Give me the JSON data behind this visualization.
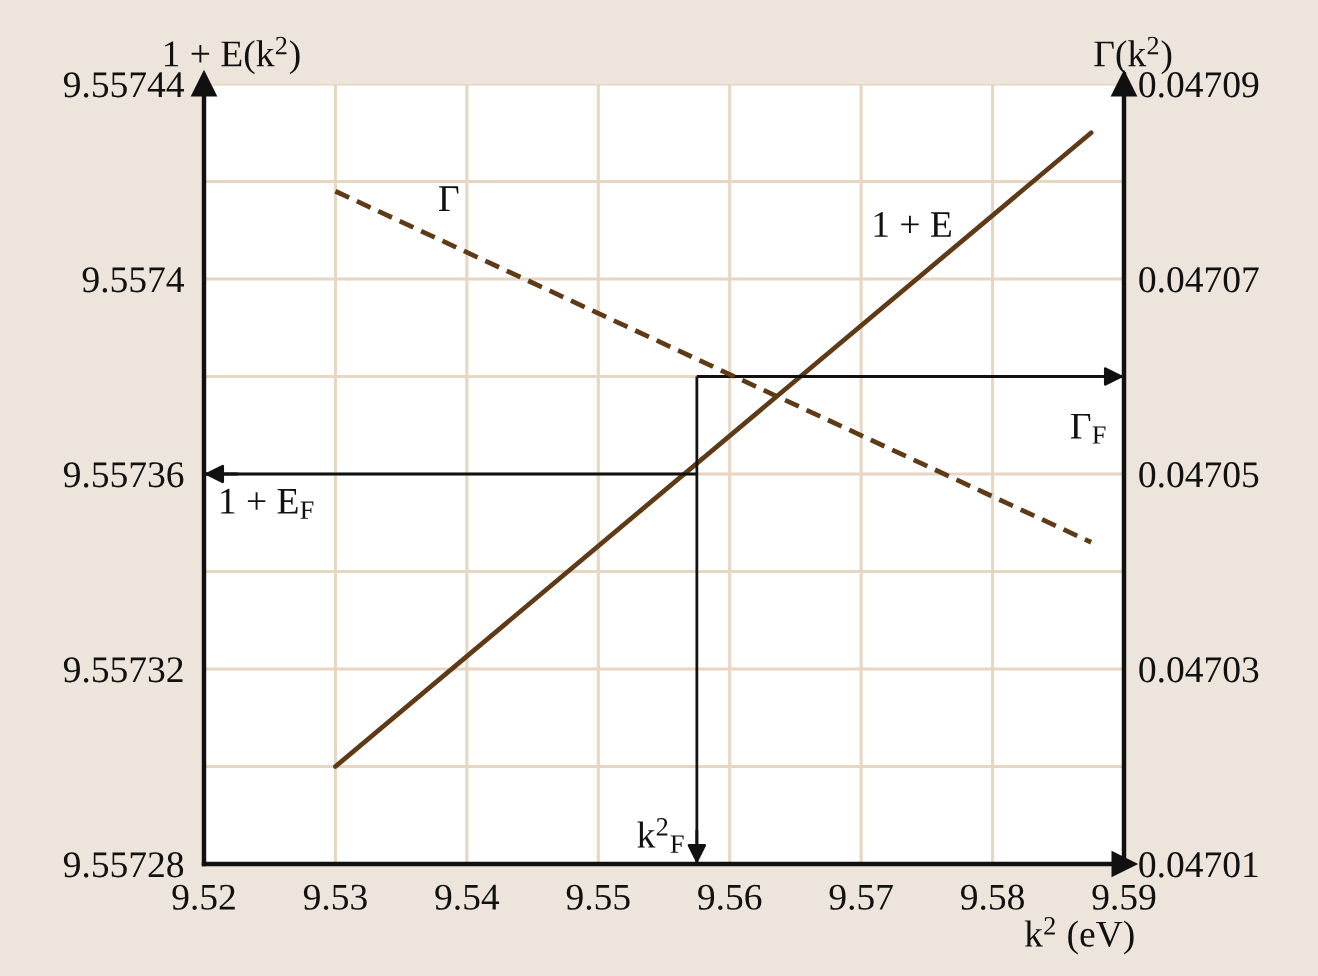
{
  "chart_data": {
    "type": "line",
    "xlabel": "k$^{2}$ (eV)",
    "ylabel": "1 + E(k$^{2}$)",
    "y2label": "Γ(k$^{2}$)",
    "x": [
      9.53,
      9.5875
    ],
    "series": [
      {
        "name": "1 + E",
        "color": "#5e3a16",
        "values": [
          9.5573,
          9.55743
        ],
        "line_style": "solid"
      },
      {
        "name": "Γ",
        "color": "#5e3a16",
        "values": [
          0.047079,
          0.047043
        ],
        "axis": "y2",
        "line_style": "dashed"
      }
    ],
    "xlim": [
      9.52,
      9.59
    ],
    "xticks": [
      9.52,
      9.53,
      9.54,
      9.55,
      9.56,
      9.57,
      9.58,
      9.59
    ],
    "ylim": [
      9.55728,
      9.55744
    ],
    "yticks": [
      9.55728,
      {
        "value": 9.5573,
        "label": null
      },
      9.55732,
      {
        "value": 9.55734,
        "label": null
      },
      9.55736,
      {
        "value": 9.55738,
        "label": null
      },
      9.5574,
      {
        "value": 9.55742,
        "label": null
      },
      9.55744
    ],
    "y2lim": [
      0.04701,
      0.04709
    ],
    "y2ticks": [
      0.04701,
      0.04703,
      0.04705,
      0.04707,
      0.04709
    ],
    "grid": true,
    "ref_lines": [
      {
        "axis": "x",
        "value": 9.5575,
        "label": "k$^{2}$$_{F}$",
        "color": "#111111"
      },
      {
        "axis": "y",
        "value": 9.55736,
        "label": "1 + E$_{F}$",
        "color": "#111111"
      },
      {
        "axis": "y2",
        "value": 0.04706,
        "label": "Γ$_{F}$",
        "color": "#111111"
      }
    ]
  }
}
